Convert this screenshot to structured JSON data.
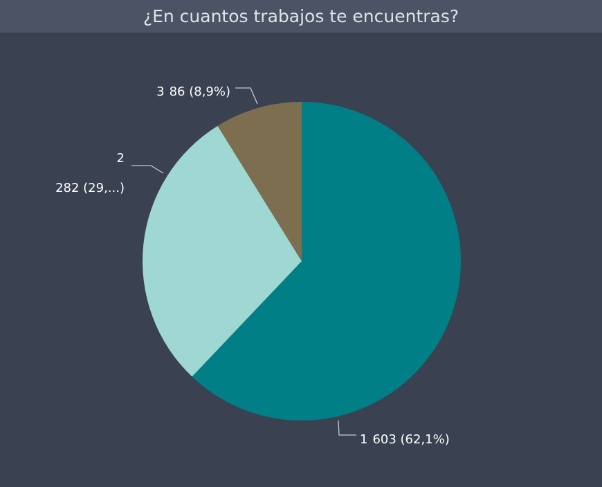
{
  "chart_data": {
    "type": "pie",
    "title": "¿En cuantos trabajos te encuentras?",
    "categories": [
      "1",
      "2",
      "3"
    ],
    "values": [
      603,
      282,
      86
    ],
    "value_labels": [
      "603 (62,1%)",
      "282 (29,...)",
      "86 (8,9%)"
    ],
    "colors": [
      "#007f87",
      "#9fd8d2",
      "#7e6e50"
    ]
  }
}
